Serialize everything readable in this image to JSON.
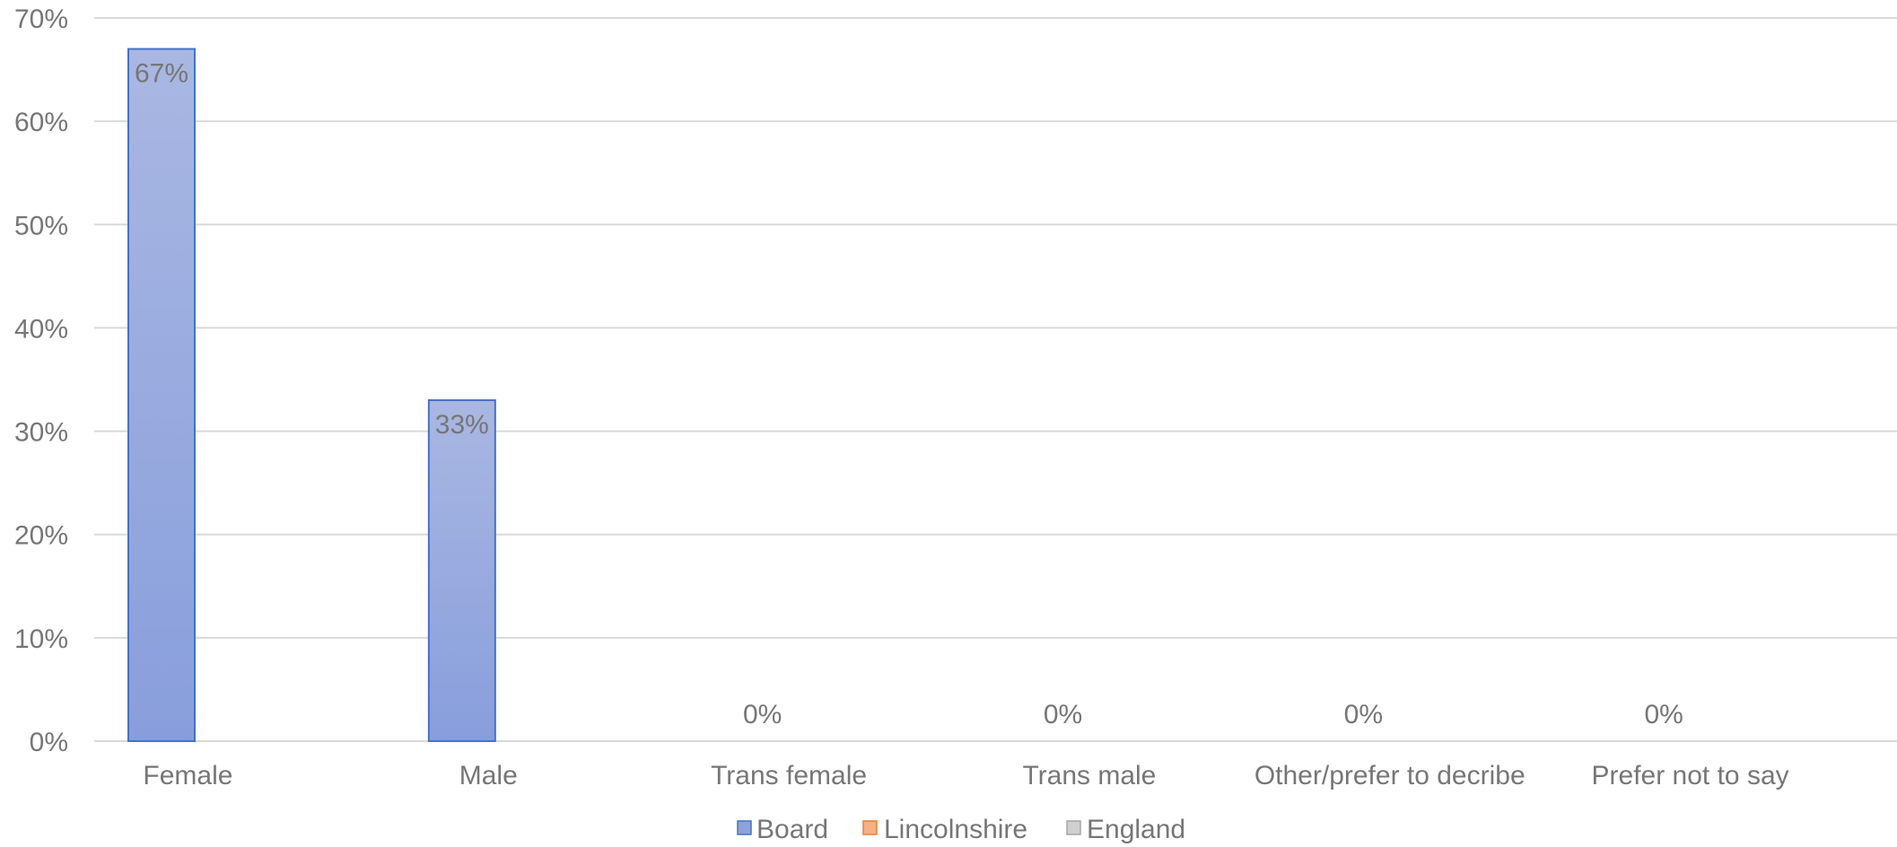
{
  "chart_data": {
    "type": "bar",
    "title": "",
    "xlabel": "",
    "ylabel": "",
    "categories": [
      "Female",
      "Male",
      "Trans female",
      "Trans male",
      "Other/prefer to decribe",
      "Prefer not to say"
    ],
    "series": [
      {
        "name": "Board",
        "values": [
          0.67,
          0.33,
          0,
          0,
          0,
          0
        ],
        "labels": [
          "67%",
          "33%",
          "0%",
          "0%",
          "0%",
          "0%"
        ],
        "color": "#8EA2DB",
        "border": "#4472C4"
      },
      {
        "name": "Lincolnshire",
        "values": [
          null,
          null,
          null,
          null,
          null,
          null
        ],
        "color": "#F4B183",
        "border": "#ED7D31"
      },
      {
        "name": "England",
        "values": [
          null,
          null,
          null,
          null,
          null,
          null
        ],
        "color": "#D0D0D0",
        "border": "#A5A5A5"
      }
    ],
    "ylim": [
      0,
      0.7
    ],
    "yticks": [
      0,
      0.1,
      0.2,
      0.3,
      0.4,
      0.5,
      0.6,
      0.7
    ],
    "ytick_labels": [
      "0%",
      "10%",
      "20%",
      "30%",
      "40%",
      "50%",
      "60%",
      "70%"
    ],
    "grid": true,
    "legend_position": "bottom"
  }
}
